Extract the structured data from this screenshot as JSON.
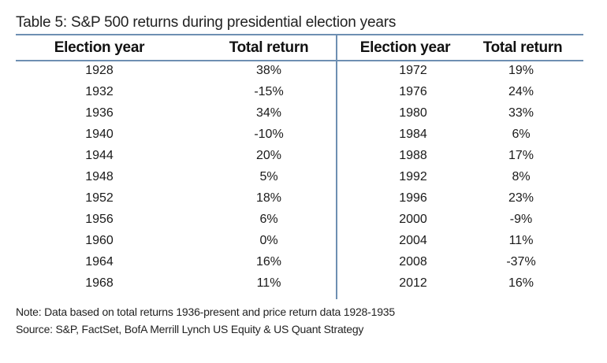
{
  "title": "Table 5: S&P 500 returns during presidential election years",
  "headers": {
    "left_year": "Election year",
    "left_return": "Total return",
    "right_year": "Election year",
    "right_return": "Total return"
  },
  "rows": [
    {
      "y1": "1928",
      "r1": "38%",
      "y2": "1972",
      "r2": "19%"
    },
    {
      "y1": "1932",
      "r1": "-15%",
      "y2": "1976",
      "r2": "24%"
    },
    {
      "y1": "1936",
      "r1": "34%",
      "y2": "1980",
      "r2": "33%"
    },
    {
      "y1": "1940",
      "r1": "-10%",
      "y2": "1984",
      "r2": "6%"
    },
    {
      "y1": "1944",
      "r1": "20%",
      "y2": "1988",
      "r2": "17%"
    },
    {
      "y1": "1948",
      "r1": "5%",
      "y2": "1992",
      "r2": "8%"
    },
    {
      "y1": "1952",
      "r1": "18%",
      "y2": "1996",
      "r2": "23%"
    },
    {
      "y1": "1956",
      "r1": "6%",
      "y2": "2000",
      "r2": "-9%"
    },
    {
      "y1": "1960",
      "r1": "0%",
      "y2": "2004",
      "r2": "11%"
    },
    {
      "y1": "1964",
      "r1": "16%",
      "y2": "2008",
      "r2": "-37%"
    },
    {
      "y1": "1968",
      "r1": "11%",
      "y2": "2012",
      "r2": "16%"
    }
  ],
  "notes": {
    "note": "Note: Data based on total returns 1936-present and price return data 1928-1935",
    "source": "Source: S&P, FactSet, BofA Merrill Lynch US Equity & US Quant Strategy"
  },
  "colors": {
    "rule": "#6e8fb2",
    "text": "#1a1a1a"
  }
}
